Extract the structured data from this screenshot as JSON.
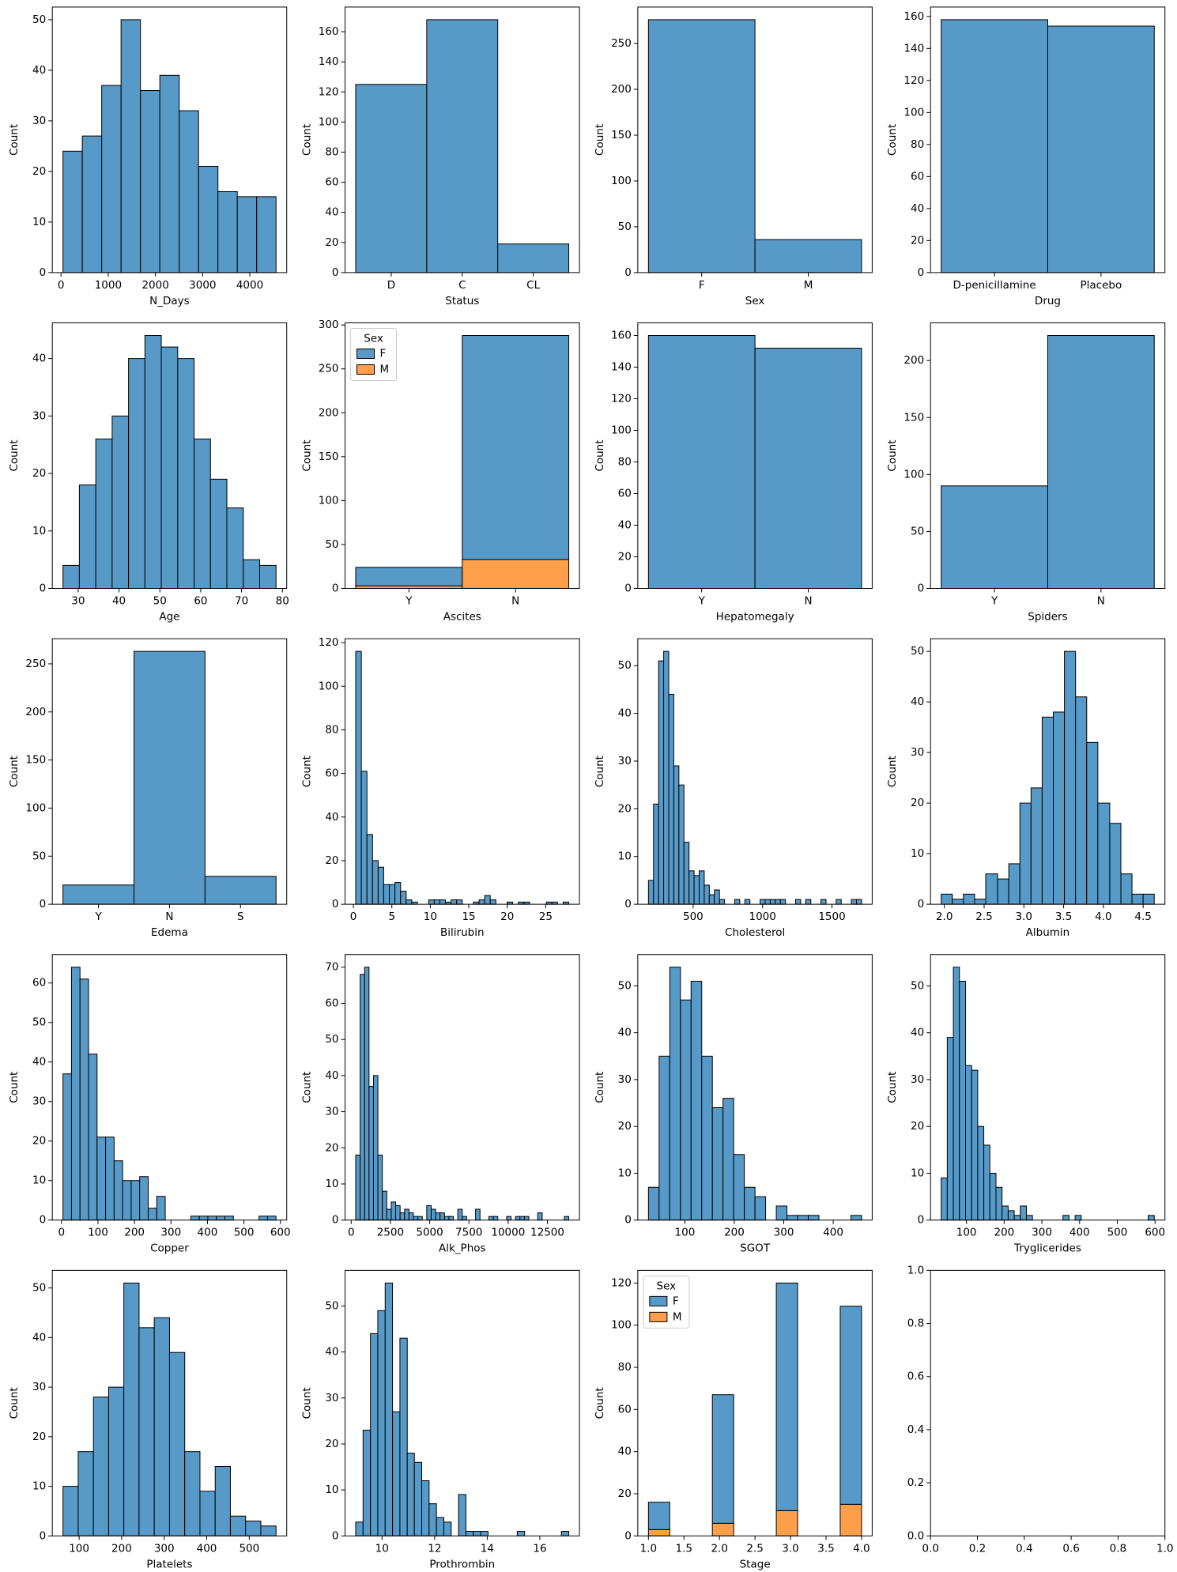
{
  "chart_data": [
    {
      "type": "histogram",
      "xlabel": "N_Days",
      "ylabel": "Count",
      "color": "#5799c7",
      "bins": [
        41,
        451,
        862,
        1272,
        1683,
        2093,
        2504,
        2914,
        3325,
        3735,
        4146,
        4556
      ],
      "values": [
        24,
        27,
        37,
        50,
        36,
        39,
        32,
        21,
        16,
        15,
        15
      ],
      "xlim": [
        -184.75,
        4781.75
      ],
      "xticks": [
        0,
        1000,
        2000,
        3000,
        4000
      ],
      "ylim": [
        0,
        52.5
      ],
      "yticks": [
        0,
        10,
        20,
        30,
        40,
        50
      ]
    },
    {
      "type": "bar",
      "xlabel": "Status",
      "ylabel": "Count",
      "color": "#5799c7",
      "categories": [
        "D",
        "C",
        "CL"
      ],
      "values": [
        125,
        168,
        19
      ],
      "ylim": [
        0,
        176.4
      ],
      "yticks": [
        0,
        20,
        40,
        60,
        80,
        100,
        120,
        140,
        160
      ]
    },
    {
      "type": "bar",
      "xlabel": "Sex",
      "ylabel": "Count",
      "color": "#5799c7",
      "categories": [
        "F",
        "M"
      ],
      "values": [
        276,
        36
      ],
      "ylim": [
        0,
        289.8
      ],
      "yticks": [
        0,
        50,
        100,
        150,
        200,
        250
      ]
    },
    {
      "type": "bar",
      "xlabel": "Drug",
      "ylabel": "Count",
      "color": "#5799c7",
      "categories": [
        "D-penicillamine",
        "Placebo"
      ],
      "values": [
        158,
        154
      ],
      "ylim": [
        0,
        165.9
      ],
      "yticks": [
        0,
        20,
        40,
        60,
        80,
        100,
        120,
        140,
        160
      ]
    },
    {
      "type": "histogram",
      "xlabel": "Age",
      "ylabel": "Count",
      "color": "#5799c7",
      "bins": [
        26.28,
        30.29,
        34.31,
        38.32,
        42.33,
        46.34,
        50.35,
        54.37,
        58.38,
        62.39,
        66.4,
        70.42,
        74.43,
        78.44
      ],
      "values": [
        4,
        18,
        26,
        30,
        40,
        44,
        42,
        40,
        26,
        19,
        14,
        5,
        4
      ],
      "xlim": [
        23.67,
        81.05
      ],
      "xticks": [
        30,
        40,
        50,
        60,
        70,
        80
      ],
      "ylim": [
        0,
        46.2
      ],
      "yticks": [
        0,
        10,
        20,
        30,
        40
      ]
    },
    {
      "type": "bar",
      "stacked": true,
      "xlabel": "Ascites",
      "ylabel": "Count",
      "categories": [
        "Y",
        "N"
      ],
      "series": [
        {
          "name": "F",
          "color": "#5799c7",
          "values": [
            21,
            255
          ]
        },
        {
          "name": "M",
          "color": "#ff9f4a",
          "values": [
            3,
            33
          ]
        }
      ],
      "legend": {
        "title": "Sex",
        "position": "upper left"
      },
      "ylim": [
        0,
        302.4
      ],
      "yticks": [
        0,
        50,
        100,
        150,
        200,
        250,
        300
      ]
    },
    {
      "type": "bar",
      "xlabel": "Hepatomegaly",
      "ylabel": "Count",
      "color": "#5799c7",
      "categories": [
        "Y",
        "N"
      ],
      "values": [
        160,
        152
      ],
      "ylim": [
        0,
        168
      ],
      "yticks": [
        0,
        20,
        40,
        60,
        80,
        100,
        120,
        140,
        160
      ]
    },
    {
      "type": "bar",
      "xlabel": "Spiders",
      "ylabel": "Count",
      "color": "#5799c7",
      "categories": [
        "Y",
        "N"
      ],
      "values": [
        90,
        222
      ],
      "ylim": [
        0,
        233.1
      ],
      "yticks": [
        0,
        50,
        100,
        150,
        200
      ]
    },
    {
      "type": "bar",
      "xlabel": "Edema",
      "ylabel": "Count",
      "color": "#5799c7",
      "categories": [
        "Y",
        "N",
        "S"
      ],
      "values": [
        20,
        263,
        29
      ],
      "ylim": [
        0,
        276.15
      ],
      "yticks": [
        0,
        50,
        100,
        150,
        200,
        250
      ]
    },
    {
      "type": "histogram",
      "xlabel": "Bilirubin",
      "ylabel": "Count",
      "color": "#5799c7",
      "bins": [
        0.3,
        1.03,
        1.76,
        2.49,
        3.22,
        3.94,
        4.67,
        5.4,
        6.13,
        6.86,
        7.59,
        8.32,
        9.05,
        9.78,
        10.51,
        11.23,
        11.96,
        12.69,
        13.42,
        14.15,
        14.88,
        15.61,
        16.34,
        17.07,
        17.79,
        18.52,
        19.25,
        19.98,
        20.71,
        21.44,
        22.17,
        22.9,
        23.63,
        24.36,
        25.08,
        25.81,
        26.54,
        27.27,
        28.0
      ],
      "values": [
        116,
        61,
        32,
        20,
        17,
        9,
        9,
        10,
        6,
        2,
        1,
        0,
        0,
        2,
        2,
        2,
        1,
        2,
        2,
        0,
        0,
        1,
        2,
        4,
        2,
        0,
        0,
        1,
        0,
        1,
        1,
        0,
        0,
        0,
        1,
        1,
        0,
        1
      ],
      "xlim": [
        -1.085,
        29.385
      ],
      "xticks": [
        0,
        5,
        10,
        15,
        20,
        25
      ],
      "ylim": [
        0,
        121.8
      ],
      "yticks": [
        0,
        20,
        40,
        60,
        80,
        100,
        120
      ]
    },
    {
      "type": "histogram",
      "xlabel": "Cholesterol",
      "ylabel": "Count",
      "color": "#5799c7",
      "bins": [
        178,
        214.5,
        251.1,
        287.6,
        324.2,
        360.7,
        397.3,
        433.8,
        470.4,
        506.9,
        543.5,
        580.0,
        616.6,
        653.1,
        689.7,
        726.2,
        762.8,
        799.3,
        835.9,
        872.4,
        909.0,
        945.5,
        982.1,
        1018.6,
        1055.2,
        1091.7,
        1128.3,
        1164.8,
        1201.4,
        1237.9,
        1274.4,
        1311.0,
        1347.5,
        1384.1,
        1420.6,
        1457.2,
        1493.7,
        1530.3,
        1566.8,
        1603.4,
        1639.9,
        1676.5,
        1713.0
      ],
      "values": [
        5,
        21,
        51,
        53,
        44,
        29,
        25,
        13,
        7,
        6,
        7,
        4,
        2,
        3,
        1,
        0,
        0,
        1,
        0,
        1,
        0,
        0,
        1,
        1,
        1,
        1,
        1,
        0,
        0,
        1,
        0,
        1,
        0,
        0,
        1,
        0,
        0,
        1,
        0,
        0,
        1,
        1
      ],
      "xlim": [
        101.25,
        1789.75
      ],
      "xticks": [
        500,
        1000,
        1500
      ],
      "ylim": [
        0,
        55.65
      ],
      "yticks": [
        0,
        10,
        20,
        30,
        40,
        50
      ]
    },
    {
      "type": "histogram",
      "xlabel": "Albumin",
      "ylabel": "Count",
      "color": "#5799c7",
      "bins": [
        1.96,
        2.1,
        2.24,
        2.38,
        2.52,
        2.67,
        2.81,
        2.95,
        3.09,
        3.23,
        3.37,
        3.51,
        3.65,
        3.79,
        3.93,
        4.08,
        4.22,
        4.36,
        4.5,
        4.64
      ],
      "values": [
        2,
        1,
        2,
        1,
        6,
        5,
        8,
        20,
        23,
        37,
        38,
        50,
        41,
        32,
        20,
        16,
        6,
        2,
        2
      ],
      "xlim": [
        1.826,
        4.774
      ],
      "xticks": [
        {
          "value": 2,
          "label": "2.0"
        },
        {
          "value": 2.5,
          "label": "2.5"
        },
        {
          "value": 3,
          "label": "3.0"
        },
        {
          "value": 3.5,
          "label": "3.5"
        },
        {
          "value": 4,
          "label": "4.0"
        },
        {
          "value": 4.5,
          "label": "4.5"
        }
      ],
      "ylim": [
        0,
        52.5
      ],
      "yticks": [
        0,
        10,
        20,
        30,
        40,
        50
      ]
    },
    {
      "type": "histogram",
      "xlabel": "Copper",
      "ylabel": "Count",
      "color": "#5799c7",
      "bins": [
        4,
        27.4,
        50.7,
        74.1,
        97.4,
        120.8,
        144.2,
        167.5,
        190.9,
        214.2,
        237.6,
        261,
        284.3,
        307.7,
        331,
        354.4,
        377.8,
        401.1,
        424.5,
        447.8,
        471.2,
        494.6,
        517.9,
        541.3,
        564.6,
        588
      ],
      "values": [
        37,
        64,
        61,
        42,
        21,
        21,
        15,
        10,
        10,
        11,
        3,
        6,
        0,
        0,
        0,
        1,
        1,
        1,
        1,
        1,
        0,
        0,
        0,
        1,
        1
      ],
      "xlim": [
        -25.2,
        617.2
      ],
      "xticks": [
        0,
        100,
        200,
        300,
        400,
        500,
        600
      ],
      "ylim": [
        0,
        67.2
      ],
      "yticks": [
        0,
        10,
        20,
        30,
        40,
        50,
        60
      ]
    },
    {
      "type": "histogram",
      "xlabel": "Alk_Phos",
      "ylabel": "Count",
      "color": "#5799c7",
      "bins": [
        289,
        572,
        855,
        1137,
        1420,
        1703,
        1986,
        2268,
        2551,
        2834,
        3117,
        3400,
        3682,
        3965,
        4248,
        4531,
        4813,
        5096,
        5379,
        5662,
        5945,
        6227,
        6510,
        6793,
        7076,
        7358,
        7641,
        7924,
        8207,
        8490,
        8772,
        9055,
        9338,
        9621,
        9903,
        10186,
        10469,
        10752,
        11035,
        11317,
        11600,
        11883,
        12166,
        12448,
        12731,
        13014,
        13297,
        13580,
        13862
      ],
      "values": [
        18,
        68,
        70,
        37,
        40,
        18,
        8,
        3,
        5,
        4,
        2,
        3,
        2,
        1,
        1,
        0,
        4,
        3,
        2,
        2,
        1,
        1,
        0,
        3,
        1,
        0,
        0,
        3,
        0,
        0,
        1,
        1,
        0,
        0,
        1,
        0,
        1,
        1,
        1,
        0,
        0,
        2,
        0,
        0,
        0,
        0,
        0,
        1
      ],
      "xlim": [
        -389.67,
        14541.07
      ],
      "xticks": [
        0,
        2500,
        5000,
        7500,
        10000,
        12500
      ],
      "ylim": [
        0,
        73.5
      ],
      "yticks": [
        0,
        10,
        20,
        30,
        40,
        50,
        60,
        70
      ]
    },
    {
      "type": "histogram",
      "xlabel": "SGOT",
      "ylabel": "Count",
      "color": "#5799c7",
      "bins": [
        26.35,
        47.9,
        69.44,
        90.99,
        112.53,
        134.08,
        155.62,
        177.17,
        198.71,
        220.26,
        241.8,
        263.35,
        284.89,
        306.44,
        327.98,
        349.53,
        371.07,
        392.62,
        414.16,
        435.71,
        457.25
      ],
      "values": [
        7,
        35,
        54,
        47,
        51,
        35,
        24,
        26,
        14,
        7,
        5,
        0,
        3,
        1,
        1,
        1,
        0,
        0,
        0,
        1
      ],
      "xlim": [
        4.805,
        478.795
      ],
      "xticks": [
        100,
        200,
        300,
        400
      ],
      "ylim": [
        0,
        56.7
      ],
      "yticks": [
        0,
        10,
        20,
        30,
        40,
        50
      ]
    },
    {
      "type": "histogram",
      "xlabel": "Tryglicerides",
      "ylabel": "Count",
      "color": "#5799c7",
      "bins": [
        33,
        49.1,
        65.3,
        81.4,
        97.6,
        113.7,
        129.9,
        146,
        162.1,
        178.3,
        194.4,
        210.6,
        226.7,
        242.9,
        259,
        275.1,
        291.3,
        307.4,
        323.6,
        339.7,
        355.9,
        372,
        388.1,
        404.3,
        420.4,
        436.6,
        452.7,
        468.9,
        485,
        501.1,
        517.3,
        533.4,
        549.6,
        565.7,
        581.9,
        598
      ],
      "values": [
        9,
        39,
        54,
        51,
        33,
        32,
        20,
        16,
        10,
        7,
        3,
        2,
        1,
        3,
        1,
        0,
        0,
        0,
        0,
        0,
        1,
        0,
        1,
        0,
        0,
        0,
        0,
        0,
        0,
        0,
        0,
        0,
        0,
        0,
        1
      ],
      "xlim": [
        4.75,
        626.25
      ],
      "xticks": [
        100,
        200,
        300,
        400,
        500,
        600
      ],
      "ylim": [
        0,
        56.7
      ],
      "yticks": [
        0,
        10,
        20,
        30,
        40,
        50
      ]
    },
    {
      "type": "histogram",
      "xlabel": "Platelets",
      "ylabel": "Count",
      "color": "#5799c7",
      "bins": [
        62,
        97.8,
        133.6,
        169.4,
        205.1,
        240.9,
        276.7,
        312.5,
        348.3,
        384.1,
        419.9,
        455.6,
        491.4,
        527.2,
        563
      ],
      "values": [
        10,
        17,
        28,
        30,
        51,
        42,
        44,
        37,
        17,
        9,
        14,
        4,
        3,
        2
      ],
      "xlim": [
        36.95,
        588.05
      ],
      "xticks": [
        100,
        200,
        300,
        400,
        500
      ],
      "ylim": [
        0,
        53.55
      ],
      "yticks": [
        0,
        10,
        20,
        30,
        40,
        50
      ]
    },
    {
      "type": "histogram",
      "xlabel": "Prothrombin",
      "ylabel": "Count",
      "color": "#5799c7",
      "bins": [
        9,
        9.28,
        9.56,
        9.84,
        10.12,
        10.4,
        10.68,
        10.96,
        11.23,
        11.51,
        11.79,
        12.07,
        12.35,
        12.63,
        12.91,
        13.19,
        13.47,
        13.75,
        14.03,
        14.31,
        14.59,
        14.87,
        15.14,
        15.42,
        15.7,
        15.98,
        16.26,
        16.54,
        16.82,
        17.1
      ],
      "values": [
        3,
        23,
        44,
        49,
        55,
        27,
        43,
        18,
        16,
        12,
        7,
        4,
        3,
        0,
        9,
        1,
        1,
        1,
        0,
        0,
        0,
        0,
        1,
        0,
        0,
        0,
        0,
        0,
        1
      ],
      "xlim": [
        8.595,
        17.505
      ],
      "xticks": [
        10,
        12,
        14,
        16
      ],
      "ylim": [
        0,
        57.75
      ],
      "yticks": [
        0,
        10,
        20,
        30,
        40,
        50
      ]
    },
    {
      "type": "histogram",
      "stacked": true,
      "xlabel": "Stage",
      "ylabel": "Count",
      "bins": [
        1.0,
        1.3,
        1.6,
        1.9,
        2.2,
        2.5,
        2.8,
        3.1,
        3.4,
        3.7,
        4.0
      ],
      "series": [
        {
          "name": "F",
          "color": "#5799c7",
          "values": [
            13,
            0,
            0,
            61,
            0,
            0,
            108,
            0,
            0,
            94
          ]
        },
        {
          "name": "M",
          "color": "#ff9f4a",
          "values": [
            3,
            0,
            0,
            6,
            0,
            0,
            12,
            0,
            0,
            15
          ]
        }
      ],
      "legend": {
        "title": "Sex",
        "position": "upper left"
      },
      "xlim": [
        0.85,
        4.15
      ],
      "xticks": [
        {
          "value": 1,
          "label": "1.0"
        },
        {
          "value": 1.5,
          "label": "1.5"
        },
        {
          "value": 2,
          "label": "2.0"
        },
        {
          "value": 2.5,
          "label": "2.5"
        },
        {
          "value": 3,
          "label": "3.0"
        },
        {
          "value": 3.5,
          "label": "3.5"
        },
        {
          "value": 4,
          "label": "4.0"
        }
      ],
      "ylim": [
        0,
        126
      ],
      "yticks": [
        0,
        20,
        40,
        60,
        80,
        100,
        120
      ]
    },
    {
      "type": "empty",
      "xlim": [
        0,
        1
      ],
      "xticks": [
        {
          "value": 0,
          "label": "0.0"
        },
        {
          "value": 0.2,
          "label": "0.2"
        },
        {
          "value": 0.4,
          "label": "0.4"
        },
        {
          "value": 0.6,
          "label": "0.6"
        },
        {
          "value": 0.8,
          "label": "0.8"
        },
        {
          "value": 1,
          "label": "1.0"
        }
      ],
      "ylim": [
        0,
        1
      ],
      "yticks": [
        {
          "value": 0,
          "label": "0.0"
        },
        {
          "value": 0.2,
          "label": "0.2"
        },
        {
          "value": 0.4,
          "label": "0.4"
        },
        {
          "value": 0.6,
          "label": "0.6"
        },
        {
          "value": 0.8,
          "label": "0.8"
        },
        {
          "value": 1,
          "label": "1.0"
        }
      ]
    }
  ]
}
